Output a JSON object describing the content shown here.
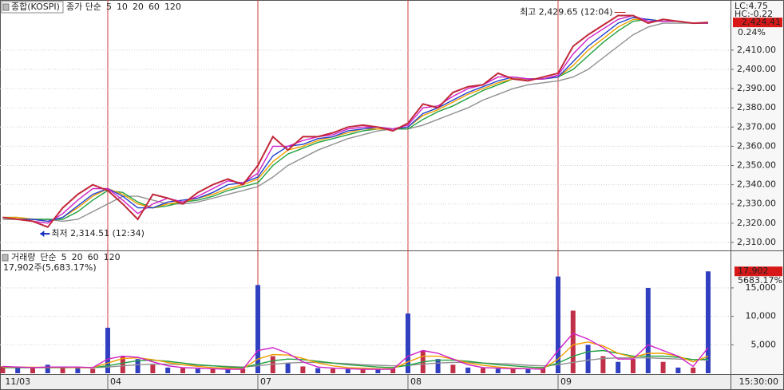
{
  "chart_data": [
    {
      "type": "line",
      "title": "종합(KOSPI)",
      "legend_title": "종가 단순",
      "lc_label": "LC:4.75",
      "hc_label": "HC:-0.22",
      "last_label": "2,424.41",
      "change_label": "0.24%",
      "x": [
        0.3,
        0.4,
        0.5,
        0.6,
        0.7,
        0.8,
        0.9,
        1.0,
        1.1,
        1.2,
        1.3,
        1.4,
        1.5,
        1.6,
        1.7,
        1.8,
        1.9,
        2.0,
        2.1,
        2.2,
        2.3,
        2.4,
        2.5,
        2.6,
        2.7,
        2.8,
        2.9,
        3.0,
        3.1,
        3.2,
        3.3,
        3.4,
        3.5,
        3.6,
        3.7,
        3.8,
        3.9,
        4.0,
        4.1,
        4.2,
        4.3,
        4.4,
        4.5,
        4.6,
        4.7,
        4.8,
        4.9,
        5.0
      ],
      "values": [
        2323,
        2322,
        2321,
        2318,
        2328,
        2335,
        2340,
        2337,
        2330,
        2322,
        2335,
        2333,
        2330,
        2336,
        2340,
        2343,
        2340,
        2350,
        2365,
        2358,
        2365,
        2365,
        2367,
        2370,
        2371,
        2370,
        2368,
        2372,
        2382,
        2380,
        2388,
        2391,
        2392,
        2398,
        2395,
        2394,
        2396,
        2398,
        2412,
        2418,
        2423,
        2428,
        2428,
        2424,
        2426,
        2425,
        2424,
        2424.41
      ],
      "color": "#c0283a",
      "series": [
        {
          "name": "5",
          "color": "#d020c8",
          "values": [
            2323,
            2322,
            2321,
            2320,
            2325,
            2332,
            2338,
            2338,
            2332,
            2325,
            2330,
            2333,
            2331,
            2334,
            2338,
            2342,
            2341,
            2346,
            2360,
            2360,
            2363,
            2365,
            2366,
            2369,
            2370,
            2370,
            2369,
            2371,
            2380,
            2381,
            2386,
            2390,
            2392,
            2396,
            2396,
            2395,
            2395,
            2397,
            2408,
            2416,
            2421,
            2426,
            2428,
            2425,
            2425,
            2425,
            2424,
            2424
          ]
        },
        {
          "name": "10",
          "color": "#2040d0",
          "values": [
            2323,
            2322,
            2322,
            2321,
            2323,
            2329,
            2335,
            2338,
            2334,
            2328,
            2328,
            2331,
            2332,
            2333,
            2336,
            2340,
            2341,
            2344,
            2355,
            2360,
            2361,
            2364,
            2365,
            2368,
            2369,
            2370,
            2369,
            2370,
            2377,
            2380,
            2384,
            2388,
            2391,
            2394,
            2396,
            2395,
            2395,
            2396,
            2404,
            2412,
            2418,
            2424,
            2427,
            2426,
            2425,
            2425,
            2424,
            2424
          ]
        },
        {
          "name": "20",
          "color": "#f0a000",
          "values": [
            2323,
            2323,
            2322,
            2321,
            2323,
            2328,
            2334,
            2338,
            2335,
            2330,
            2328,
            2330,
            2331,
            2333,
            2335,
            2338,
            2340,
            2343,
            2352,
            2358,
            2360,
            2363,
            2365,
            2367,
            2369,
            2369,
            2369,
            2370,
            2376,
            2379,
            2383,
            2387,
            2390,
            2393,
            2395,
            2395,
            2395,
            2396,
            2402,
            2410,
            2416,
            2422,
            2426,
            2426,
            2425,
            2425,
            2424,
            2424
          ]
        },
        {
          "name": "60",
          "color": "#20a040",
          "values": [
            2323,
            2323,
            2322,
            2322,
            2322,
            2326,
            2332,
            2337,
            2336,
            2331,
            2328,
            2329,
            2331,
            2332,
            2334,
            2337,
            2339,
            2341,
            2350,
            2356,
            2359,
            2362,
            2364,
            2366,
            2368,
            2369,
            2369,
            2369,
            2374,
            2378,
            2381,
            2385,
            2389,
            2392,
            2395,
            2395,
            2395,
            2396,
            2400,
            2407,
            2414,
            2420,
            2425,
            2426,
            2425,
            2425,
            2424,
            2424
          ]
        },
        {
          "name": "120",
          "color": "#909090",
          "values": [
            2322,
            2322,
            2322,
            2322,
            2321,
            2322,
            2326,
            2330,
            2334,
            2334,
            2332,
            2330,
            2330,
            2331,
            2333,
            2335,
            2337,
            2339,
            2344,
            2350,
            2354,
            2358,
            2361,
            2364,
            2366,
            2368,
            2369,
            2369,
            2371,
            2374,
            2377,
            2380,
            2384,
            2387,
            2390,
            2392,
            2393,
            2394,
            2396,
            2400,
            2406,
            2412,
            2418,
            2422,
            2424,
            2424,
            2424,
            2424
          ]
        }
      ],
      "high": {
        "label": "최고 2,429.65 (12:04)",
        "value": 2429.65,
        "x": 4.45
      },
      "low": {
        "label": "최저 2,314.51 (12:34)",
        "value": 2314.51,
        "x": 0.55
      },
      "xlim": [
        0.282,
        5.149
      ],
      "ylim": [
        2306,
        2434
      ],
      "yticks": [
        {
          "value": 2310,
          "label": "2,310.00"
        },
        {
          "value": 2320,
          "label": "2,320.00"
        },
        {
          "value": 2330,
          "label": "2,330.00"
        },
        {
          "value": 2340,
          "label": "2,340.00"
        },
        {
          "value": 2350,
          "label": "2,350.00"
        },
        {
          "value": 2360,
          "label": "2,360.00"
        },
        {
          "value": 2370,
          "label": "2,370.00"
        },
        {
          "value": 2380,
          "label": "2,380.00"
        },
        {
          "value": 2390,
          "label": "2,390.00"
        },
        {
          "value": 2400,
          "label": "2,400.00"
        },
        {
          "value": 2410,
          "label": "2,410.00"
        }
      ],
      "grid": true
    },
    {
      "type": "bar",
      "title": "거래량",
      "legend_title": "단순",
      "summary": "17,902주(5,683.17%)",
      "last_label": "17,902",
      "ratio_label": "5683.17%",
      "time_label": "15:30:00",
      "x": [
        0.3,
        0.4,
        0.5,
        0.6,
        0.7,
        0.8,
        0.9,
        1.0,
        1.1,
        1.2,
        1.3,
        1.4,
        1.5,
        1.6,
        1.7,
        1.8,
        1.9,
        2.0,
        2.1,
        2.2,
        2.3,
        2.4,
        2.5,
        2.6,
        2.7,
        2.8,
        2.9,
        3.0,
        3.1,
        3.2,
        3.3,
        3.4,
        3.5,
        3.6,
        3.7,
        3.8,
        3.9,
        4.0,
        4.1,
        4.2,
        4.3,
        4.4,
        4.5,
        4.6,
        4.7,
        4.8,
        4.9,
        5.0
      ],
      "values": [
        1200,
        1000,
        900,
        1500,
        1100,
        900,
        800,
        8000,
        3000,
        2500,
        1500,
        1000,
        900,
        800,
        700,
        700,
        800,
        15500,
        3000,
        1800,
        1200,
        900,
        800,
        700,
        700,
        700,
        800,
        10500,
        4000,
        2500,
        1500,
        1000,
        900,
        800,
        800,
        700,
        900,
        17000,
        11000,
        5000,
        3000,
        2000,
        2500,
        15000,
        2000,
        1000,
        1000,
        17902
      ],
      "color": "#c03048",
      "series": [
        {
          "name": "5",
          "color": "#d020c8",
          "values": [
            1200,
            1100,
            1000,
            1100,
            1100,
            1100,
            1000,
            2500,
            3000,
            2800,
            2000,
            1300,
            1000,
            900,
            800,
            700,
            700,
            4000,
            4500,
            3500,
            2000,
            1100,
            900,
            800,
            700,
            700,
            700,
            3000,
            4000,
            3500,
            2500,
            1500,
            1000,
            900,
            800,
            800,
            700,
            4000,
            7000,
            6000,
            4500,
            2500,
            2500,
            5000,
            4000,
            3000,
            1200,
            4500
          ]
        },
        {
          "name": "20",
          "color": "#f0a000",
          "values": [
            1100,
            1100,
            1050,
            1050,
            1050,
            1000,
            1000,
            1800,
            2600,
            2700,
            2400,
            1900,
            1500,
            1200,
            1000,
            900,
            800,
            2500,
            3300,
            3200,
            2600,
            1800,
            1300,
            1000,
            900,
            800,
            800,
            2000,
            3000,
            3000,
            2500,
            1800,
            1400,
            1100,
            900,
            800,
            800,
            2500,
            5000,
            5500,
            4800,
            3500,
            2800,
            3500,
            3500,
            3000,
            2000,
            3000
          ]
        },
        {
          "name": "60",
          "color": "#20a040",
          "values": [
            1000,
            1000,
            1000,
            1000,
            1000,
            1000,
            1000,
            1300,
            1800,
            2200,
            2300,
            2100,
            1800,
            1500,
            1300,
            1100,
            1000,
            1600,
            2200,
            2500,
            2400,
            2100,
            1800,
            1500,
            1300,
            1100,
            1000,
            1400,
            2000,
            2300,
            2300,
            2100,
            1800,
            1500,
            1300,
            1100,
            1000,
            1800,
            3000,
            3800,
            4000,
            3500,
            3000,
            3000,
            3000,
            2800,
            2400,
            2500
          ]
        },
        {
          "name": "120",
          "color": "#909090",
          "values": [
            1000,
            1000,
            1000,
            1000,
            1000,
            1000,
            1000,
            1100,
            1300,
            1500,
            1600,
            1600,
            1500,
            1400,
            1300,
            1200,
            1100,
            1300,
            1600,
            1800,
            1900,
            1900,
            1800,
            1700,
            1500,
            1400,
            1300,
            1400,
            1600,
            1800,
            1900,
            1900,
            1800,
            1700,
            1600,
            1400,
            1300,
            1500,
            1900,
            2300,
            2600,
            2700,
            2700,
            2700,
            2600,
            2500,
            2400,
            2300
          ]
        }
      ],
      "xlim": [
        0.282,
        5.149
      ],
      "ylim": [
        0,
        21300
      ],
      "xticks": [
        {
          "value": 0.3,
          "label": "11/03"
        },
        {
          "value": 1,
          "label": "04"
        },
        {
          "value": 2,
          "label": "07"
        },
        {
          "value": 3,
          "label": "08"
        },
        {
          "value": 4,
          "label": "09"
        }
      ],
      "yticks": [
        {
          "value": 5000,
          "label": "5,000"
        },
        {
          "value": 10000,
          "label": "10,000"
        },
        {
          "value": 15000,
          "label": "15,000"
        }
      ],
      "grid": true
    }
  ]
}
